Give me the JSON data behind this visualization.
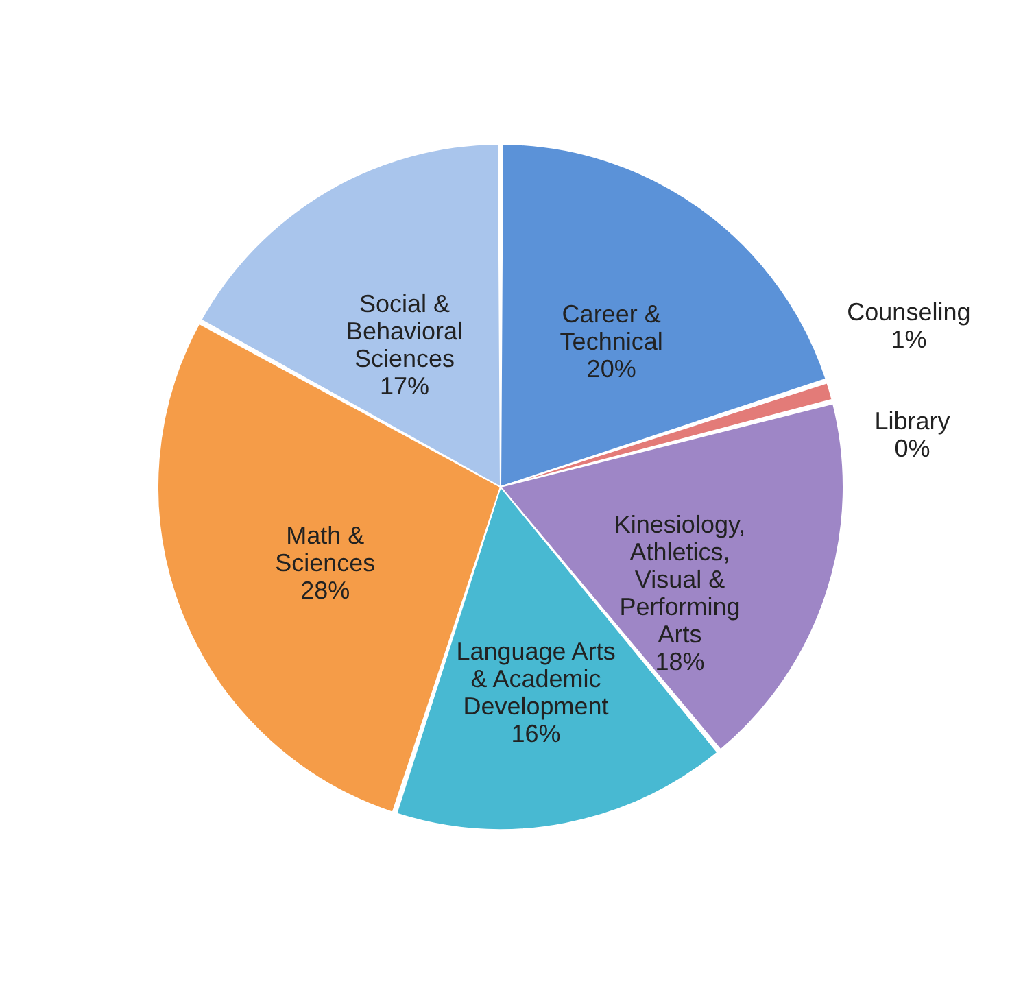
{
  "chart_data": {
    "type": "pie",
    "categories": [
      "Career & Technical",
      "Counseling",
      "Library",
      "Kinesiology, Athletics, Visual & Performing Arts",
      "Language Arts & Academic Development",
      "Math & Sciences",
      "Social & Behavioral Sciences"
    ],
    "values": [
      20,
      1,
      0,
      18,
      16,
      28,
      17
    ],
    "value_labels": [
      "20%",
      "1%",
      "0%",
      "18%",
      "16%",
      "28%",
      "17%"
    ],
    "colors": [
      "#5b92d8",
      "#e37b78",
      "#9ccf78",
      "#9e86c6",
      "#48b9d2",
      "#f59c48",
      "#a9c5ec"
    ],
    "legend": false
  }
}
